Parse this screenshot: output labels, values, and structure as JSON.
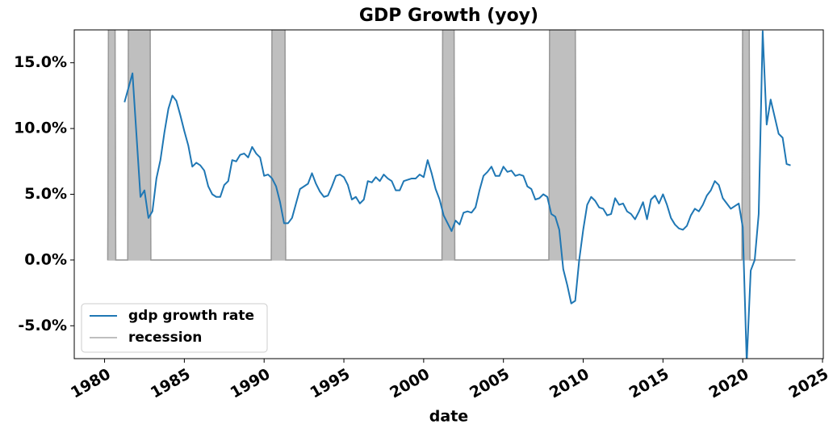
{
  "chart_data": {
    "type": "line",
    "title": "GDP Growth (yoy)",
    "xlabel": "date",
    "xlim": [
      1978.1,
      2025.05
    ],
    "xticks": [
      1980,
      1985,
      1990,
      1995,
      2000,
      2005,
      2010,
      2015,
      2020,
      2025
    ],
    "ylim": [
      -7.5,
      17.5
    ],
    "yticks": [
      {
        "value": -5,
        "label": "-5.0%"
      },
      {
        "value": 0,
        "label": "0.0%"
      },
      {
        "value": 5,
        "label": "5.0%"
      },
      {
        "value": 10,
        "label": "10.0%"
      },
      {
        "value": 15,
        "label": "15.0%"
      }
    ],
    "legend": "lower left",
    "series": [
      {
        "name": "gdp growth rate",
        "color": "#1f77b4",
        "x": [
          1981.25,
          1981.5,
          1981.75,
          1982,
          1982.25,
          1982.5,
          1982.75,
          1983,
          1983.25,
          1983.5,
          1983.75,
          1984,
          1984.25,
          1984.5,
          1984.75,
          1985,
          1985.25,
          1985.5,
          1985.75,
          1986,
          1986.25,
          1986.5,
          1986.75,
          1987,
          1987.25,
          1987.5,
          1987.75,
          1988,
          1988.25,
          1988.5,
          1988.75,
          1989,
          1989.25,
          1989.5,
          1989.75,
          1990,
          1990.25,
          1990.5,
          1990.75,
          1991,
          1991.25,
          1991.5,
          1991.75,
          1992,
          1992.25,
          1992.5,
          1992.75,
          1993,
          1993.25,
          1993.5,
          1993.75,
          1994,
          1994.25,
          1994.5,
          1994.75,
          1995,
          1995.25,
          1995.5,
          1995.75,
          1996,
          1996.25,
          1996.5,
          1996.75,
          1997,
          1997.25,
          1997.5,
          1997.75,
          1998,
          1998.25,
          1998.5,
          1998.75,
          1999,
          1999.25,
          1999.5,
          1999.75,
          2000,
          2000.25,
          2000.5,
          2000.75,
          2001,
          2001.25,
          2001.5,
          2001.75,
          2002,
          2002.25,
          2002.5,
          2002.75,
          2003,
          2003.25,
          2003.5,
          2003.75,
          2004,
          2004.25,
          2004.5,
          2004.75,
          2005,
          2005.25,
          2005.5,
          2005.75,
          2006,
          2006.25,
          2006.5,
          2006.75,
          2007,
          2007.25,
          2007.5,
          2007.75,
          2008,
          2008.25,
          2008.5,
          2008.75,
          2009,
          2009.25,
          2009.5,
          2009.75,
          2010,
          2010.25,
          2010.5,
          2010.75,
          2011,
          2011.25,
          2011.5,
          2011.75,
          2012,
          2012.25,
          2012.5,
          2012.75,
          2013,
          2013.25,
          2013.5,
          2013.75,
          2014,
          2014.25,
          2014.5,
          2014.75,
          2015,
          2015.25,
          2015.5,
          2015.75,
          2016,
          2016.25,
          2016.5,
          2016.75,
          2017,
          2017.25,
          2017.5,
          2017.75,
          2018,
          2018.25,
          2018.5,
          2018.75,
          2019,
          2019.25,
          2019.5,
          2019.75,
          2020,
          2020.25,
          2020.5,
          2020.75,
          2021,
          2021.25,
          2021.5,
          2021.75,
          2022,
          2022.25,
          2022.5,
          2022.75,
          2023
        ],
        "values": [
          12.0,
          13.1,
          14.2,
          9.5,
          4.8,
          5.3,
          3.2,
          3.7,
          6.2,
          7.6,
          9.7,
          11.5,
          12.5,
          12.1,
          11.0,
          9.8,
          8.7,
          7.1,
          7.4,
          7.2,
          6.8,
          5.6,
          5.0,
          4.8,
          4.8,
          5.7,
          6.0,
          7.6,
          7.5,
          8.0,
          8.1,
          7.8,
          8.6,
          8.1,
          7.8,
          6.4,
          6.5,
          6.2,
          5.6,
          4.4,
          2.8,
          2.8,
          3.2,
          4.3,
          5.4,
          5.6,
          5.8,
          6.6,
          5.8,
          5.2,
          4.8,
          4.9,
          5.6,
          6.4,
          6.5,
          6.3,
          5.7,
          4.6,
          4.8,
          4.3,
          4.6,
          6.0,
          5.9,
          6.3,
          6.0,
          6.5,
          6.2,
          6.0,
          5.3,
          5.3,
          6.0,
          6.1,
          6.2,
          6.2,
          6.5,
          6.3,
          7.6,
          6.6,
          5.4,
          4.6,
          3.4,
          2.8,
          2.2,
          3.0,
          2.7,
          3.6,
          3.7,
          3.6,
          4.0,
          5.3,
          6.4,
          6.7,
          7.1,
          6.4,
          6.4,
          7.1,
          6.7,
          6.8,
          6.4,
          6.5,
          6.4,
          5.6,
          5.4,
          4.6,
          4.7,
          5.0,
          4.8,
          3.5,
          3.3,
          2.3,
          -0.7,
          -1.9,
          -3.3,
          -3.1,
          0.0,
          2.3,
          4.2,
          4.8,
          4.5,
          4.0,
          3.9,
          3.4,
          3.5,
          4.7,
          4.2,
          4.3,
          3.7,
          3.5,
          3.1,
          3.7,
          4.4,
          3.1,
          4.6,
          4.9,
          4.3,
          5.0,
          4.2,
          3.2,
          2.7,
          2.4,
          2.3,
          2.6,
          3.4,
          3.9,
          3.7,
          4.2,
          4.9,
          5.3,
          6.0,
          5.7,
          4.7,
          4.3,
          3.9,
          4.1,
          4.3,
          2.5,
          -7.8,
          -0.8,
          0.0,
          3.5,
          17.4,
          10.3,
          12.2,
          10.9,
          9.6,
          9.3,
          7.3,
          7.2
        ]
      },
      {
        "name": "recession",
        "color": "#bfbfbf",
        "fill": true,
        "x": [
          1980.2,
          1980.25,
          1980.65,
          1980.7,
          1981.45,
          1981.5,
          1982.85,
          1982.9,
          1990.45,
          1990.5,
          1991.3,
          1991.35,
          2001.15,
          2001.2,
          2001.9,
          2001.95,
          2007.85,
          2007.9,
          2009.5,
          2009.55,
          2019.95,
          2020.0,
          2020.4,
          2020.45,
          2023.3
        ],
        "values": [
          0,
          20,
          20,
          0,
          0,
          20,
          20,
          0,
          0,
          20,
          20,
          0,
          0,
          20,
          20,
          0,
          0,
          20,
          20,
          0,
          0,
          20,
          20,
          0,
          0
        ]
      }
    ]
  }
}
